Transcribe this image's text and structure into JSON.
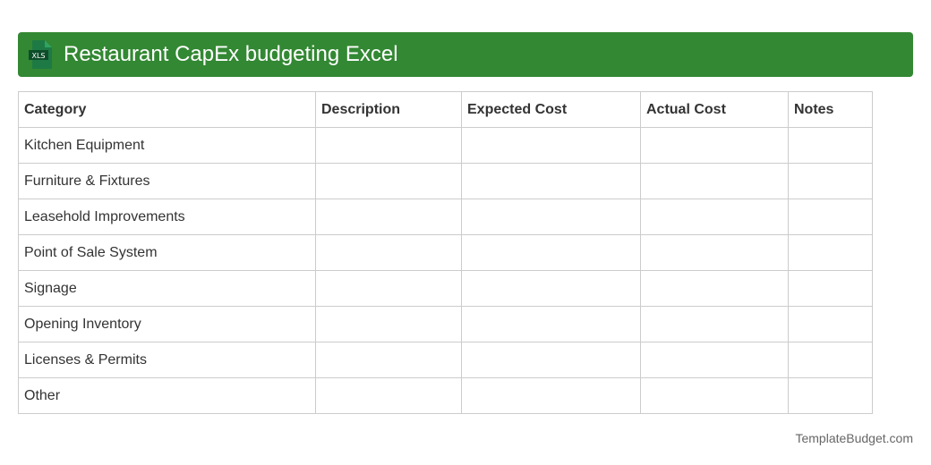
{
  "header": {
    "title": "Restaurant CapEx budgeting Excel",
    "icon": "xls-file-icon",
    "icon_text": "XLS",
    "color": "#338833"
  },
  "table": {
    "columns": [
      "Category",
      "Description",
      "Expected Cost",
      "Actual Cost",
      "Notes"
    ],
    "rows": [
      [
        "Kitchen Equipment",
        "",
        "",
        "",
        ""
      ],
      [
        "Furniture & Fixtures",
        "",
        "",
        "",
        ""
      ],
      [
        "Leasehold Improvements",
        "",
        "",
        "",
        ""
      ],
      [
        "Point of Sale System",
        "",
        "",
        "",
        ""
      ],
      [
        "Signage",
        "",
        "",
        "",
        ""
      ],
      [
        "Opening Inventory",
        "",
        "",
        "",
        ""
      ],
      [
        "Licenses & Permits",
        "",
        "",
        "",
        ""
      ],
      [
        "Other",
        "",
        "",
        "",
        ""
      ]
    ]
  },
  "footer": {
    "text": "TemplateBudget.com"
  }
}
